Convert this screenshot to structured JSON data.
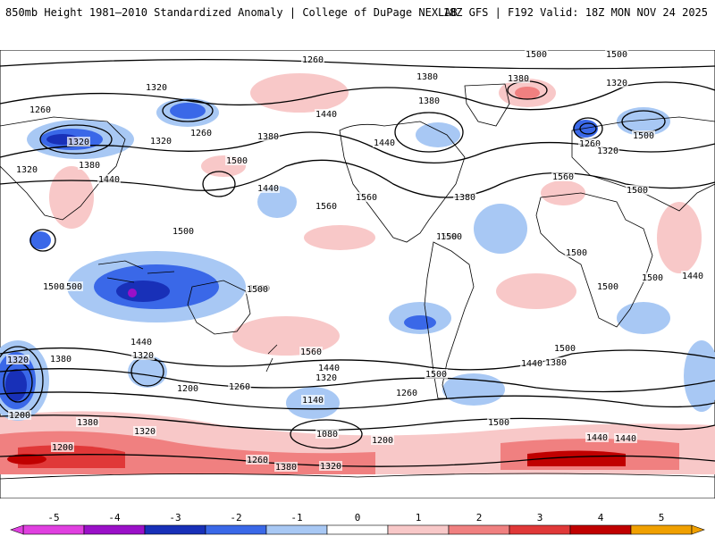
{
  "header": {
    "title": "850mb Height 1981–2010 Standardized Anomaly | College of DuPage NEXLAB",
    "run_info": "18Z GFS | F192 Valid: 18Z MON NOV 24 2025"
  },
  "map": {
    "projection": "global",
    "field": "850mb geopotential height (contours, m) with standardized anomaly shading",
    "contour_labels": [
      "1260",
      "1380",
      "1380",
      "1320",
      "1320",
      "1440",
      "1260",
      "1380",
      "1320",
      "1260",
      "1320",
      "1380",
      "1440",
      "1260",
      "1380",
      "1320",
      "1500",
      "1500",
      "1320",
      "1440",
      "1560",
      "1440",
      "1500",
      "1560",
      "1380",
      "1440",
      "1500",
      "1500",
      "1500",
      "1560",
      "1500",
      "1500",
      "1500",
      "1500",
      "1500",
      "1500",
      "1500",
      "1500",
      "1500",
      "1440",
      "1380",
      "1320",
      "1440",
      "1320",
      "1560",
      "1500",
      "1500",
      "1440",
      "1380",
      "1320",
      "1260",
      "1200",
      "1140",
      "1200",
      "1260",
      "1200",
      "1380",
      "1500",
      "1320",
      "1080",
      "1200",
      "1260",
      "1380",
      "1320",
      "1440",
      "1440",
      "1500",
      "1380",
      "1320",
      "1260"
    ]
  },
  "chart_data": {
    "type": "heatmap",
    "title": "850mb Height 1981–2010 Standardized Anomaly",
    "colorbar": {
      "ticks": [
        "-5",
        "-4",
        "-3",
        "-2",
        "-1",
        "0",
        "1",
        "2",
        "3",
        "4",
        "5"
      ],
      "colors": [
        "#e040e0",
        "#9a10c8",
        "#1830b8",
        "#3a68e8",
        "#a8c8f4",
        "#ffffff",
        "#f8c8c8",
        "#f08080",
        "#e03838",
        "#c00000",
        "#f0a000"
      ],
      "range": [
        -5,
        5
      ]
    }
  }
}
